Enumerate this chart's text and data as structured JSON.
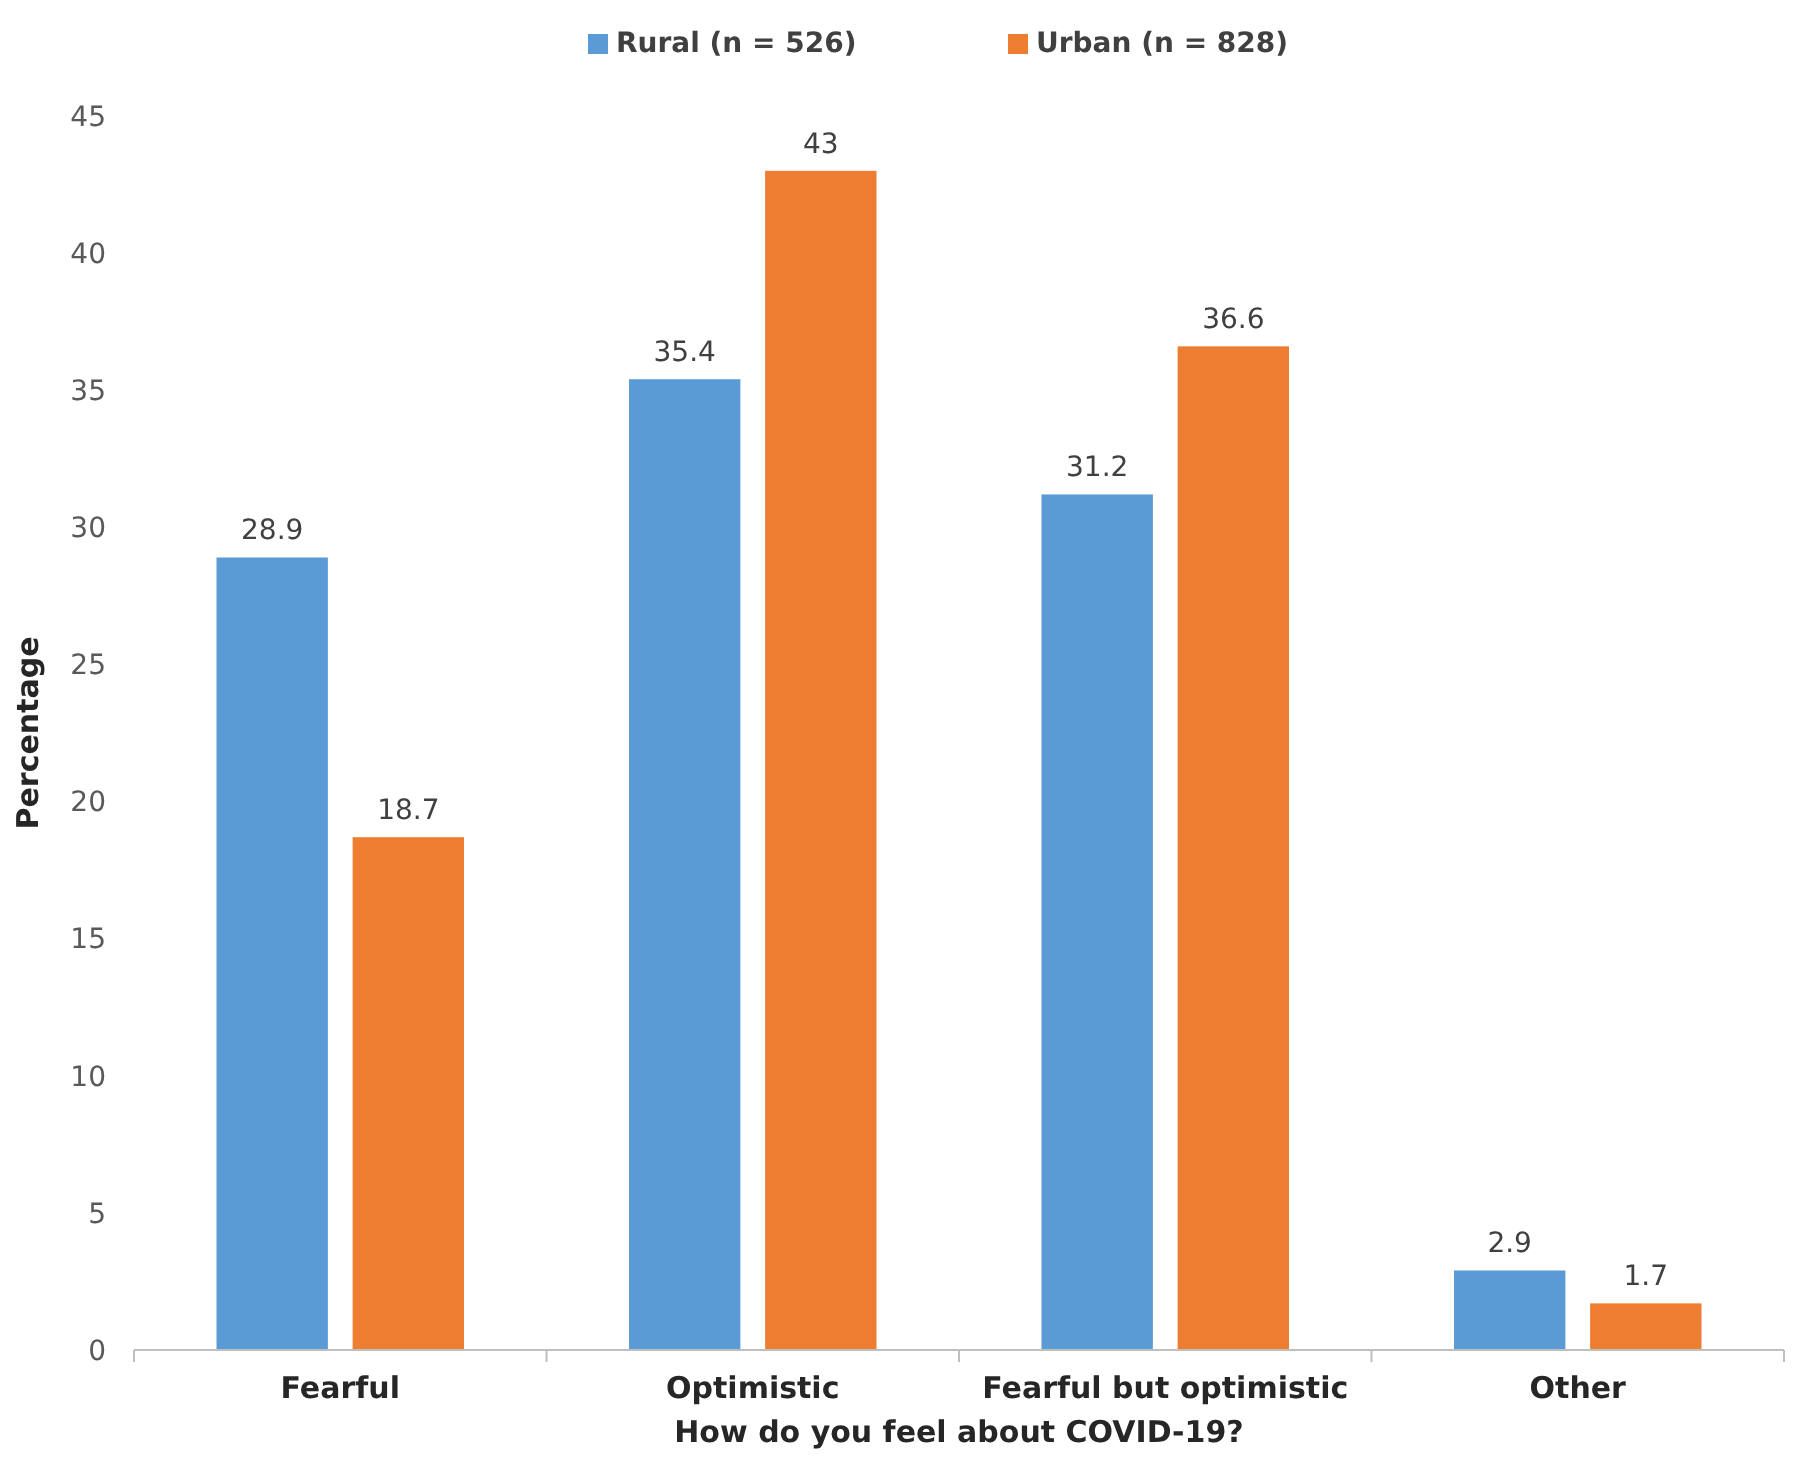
{
  "chart_data": {
    "type": "bar",
    "xlabel": "How do you feel about COVID-19?",
    "ylabel": "Percentage",
    "categories": [
      "Fearful",
      "Optimistic",
      "Fearful but optimistic",
      "Other"
    ],
    "series": [
      {
        "name": "Rural (n = 526)",
        "color": "#5b9bd5",
        "values": [
          28.9,
          35.4,
          31.2,
          2.9
        ]
      },
      {
        "name": "Urban (n = 828)",
        "color": "#ed7d31",
        "values": [
          18.7,
          43,
          36.6,
          1.7
        ]
      }
    ],
    "ylim": [
      0,
      45
    ],
    "yticks": [
      0,
      5,
      10,
      15,
      20,
      25,
      30,
      35,
      40,
      45
    ],
    "grid": false,
    "legend": "top",
    "data_labels": true
  }
}
